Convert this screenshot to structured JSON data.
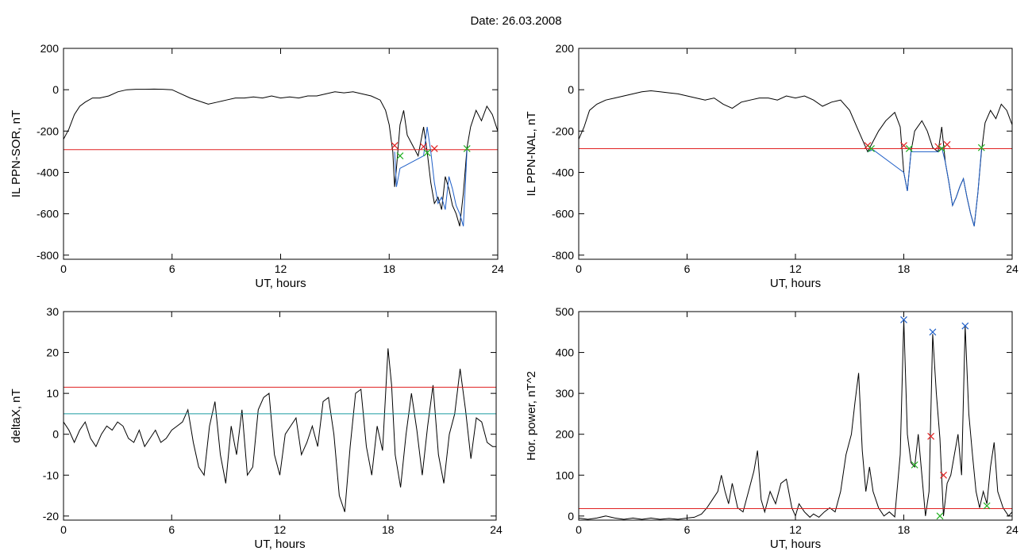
{
  "figure": {
    "title": "Date:  26.03.2008"
  },
  "chart_data": [
    {
      "type": "line",
      "panel": "top-left",
      "xlabel": "UT, hours",
      "ylabel": "IL PPN-SOR, nT",
      "xlim": [
        0,
        24
      ],
      "ylim": [
        -820,
        200
      ],
      "xticks": [
        0,
        6,
        12,
        18,
        24
      ],
      "yticks": [
        -800,
        -600,
        -400,
        -200,
        0,
        200
      ],
      "series": [
        {
          "kind": "line",
          "color": "#000000",
          "x": [
            0,
            0.3,
            0.6,
            0.9,
            1.2,
            1.6,
            2,
            2.5,
            3,
            3.5,
            4,
            4.5,
            5,
            5.5,
            6,
            6.5,
            7,
            7.5,
            8,
            8.5,
            9,
            9.5,
            10,
            10.5,
            11,
            11.5,
            12,
            12.5,
            13,
            13.5,
            14,
            14.5,
            15,
            15.5,
            16,
            16.5,
            17,
            17.5,
            17.8,
            18,
            18.2,
            18.3,
            18.4,
            18.6,
            18.8,
            19,
            19.3,
            19.6,
            19.9,
            20.1,
            20.3,
            20.5,
            20.7,
            20.9,
            21.1,
            21.3,
            21.5,
            21.7,
            21.9,
            22.1,
            22.3,
            22.5,
            22.8,
            23.1,
            23.4,
            23.7,
            24
          ],
          "y": [
            -240,
            -190,
            -120,
            -80,
            -60,
            -40,
            -40,
            -30,
            -10,
            0,
            2,
            2,
            3,
            2,
            0,
            -20,
            -40,
            -55,
            -70,
            -60,
            -50,
            -40,
            -40,
            -35,
            -40,
            -30,
            -40,
            -35,
            -40,
            -30,
            -30,
            -20,
            -10,
            -15,
            -10,
            -20,
            -30,
            -50,
            -100,
            -170,
            -300,
            -470,
            -380,
            -170,
            -100,
            -220,
            -270,
            -320,
            -180,
            -300,
            -450,
            -550,
            -520,
            -580,
            -420,
            -480,
            -560,
            -600,
            -660,
            -500,
            -280,
            -180,
            -100,
            -150,
            -80,
            -120,
            -200
          ]
        },
        {
          "kind": "line",
          "color": "#1f5fc8",
          "x": [
            18.3,
            18.4,
            18.6,
            19.9,
            20.1,
            20.3,
            20.5,
            20.7,
            20.9,
            21.1,
            21.3,
            21.5,
            21.7,
            21.9,
            22.1,
            22.3
          ],
          "y": [
            -300,
            -470,
            -380,
            -320,
            -180,
            -300,
            -450,
            -550,
            -520,
            -580,
            -420,
            -480,
            -560,
            -600,
            -660,
            -290
          ]
        },
        {
          "kind": "hline",
          "color": "#e02020",
          "y": -290
        },
        {
          "kind": "markers",
          "color": "#e02020",
          "x": [
            18.3,
            19.9,
            20.5
          ],
          "y": [
            -270,
            -275,
            -285
          ]
        },
        {
          "kind": "markers",
          "color": "#20b020",
          "x": [
            18.6,
            20.1,
            22.3
          ],
          "y": [
            -320,
            -305,
            -285
          ]
        }
      ]
    },
    {
      "type": "line",
      "panel": "top-right",
      "xlabel": "UT, hours",
      "ylabel": "IL PPN-NAL, nT",
      "xlim": [
        0,
        24
      ],
      "ylim": [
        -820,
        200
      ],
      "xticks": [
        0,
        6,
        12,
        18,
        24
      ],
      "yticks": [
        -800,
        -600,
        -400,
        -200,
        0,
        200
      ],
      "series": [
        {
          "kind": "line",
          "color": "#000000",
          "x": [
            0,
            0.3,
            0.6,
            1,
            1.5,
            2,
            2.5,
            3,
            3.5,
            4,
            4.5,
            5,
            5.5,
            6,
            6.5,
            7,
            7.5,
            8,
            8.5,
            9,
            9.5,
            10,
            10.5,
            11,
            11.5,
            12,
            12.5,
            13,
            13.5,
            14,
            14.5,
            15,
            15.5,
            16,
            16.3,
            16.6,
            17,
            17.5,
            17.8,
            18,
            18.2,
            18.4,
            18.6,
            19,
            19.3,
            19.6,
            19.9,
            20.1,
            20.3,
            20.5,
            20.7,
            20.9,
            21.1,
            21.3,
            21.5,
            21.7,
            21.9,
            22.1,
            22.3,
            22.5,
            22.8,
            23.1,
            23.4,
            23.7,
            24
          ],
          "y": [
            -240,
            -180,
            -100,
            -70,
            -50,
            -40,
            -30,
            -20,
            -10,
            -5,
            -10,
            -15,
            -20,
            -30,
            -40,
            -50,
            -40,
            -70,
            -90,
            -60,
            -50,
            -40,
            -40,
            -50,
            -30,
            -40,
            -30,
            -50,
            -80,
            -60,
            -50,
            -100,
            -200,
            -300,
            -250,
            -200,
            -150,
            -110,
            -180,
            -400,
            -490,
            -300,
            -200,
            -150,
            -200,
            -280,
            -300,
            -180,
            -350,
            -450,
            -560,
            -520,
            -470,
            -430,
            -520,
            -600,
            -660,
            -500,
            -300,
            -160,
            -100,
            -140,
            -70,
            -100,
            -170
          ]
        },
        {
          "kind": "line",
          "color": "#1f5fc8",
          "x": [
            16,
            16.3,
            18,
            18.2,
            18.4,
            19.9,
            20.1,
            20.3,
            20.5,
            20.7,
            20.9,
            21.1,
            21.3,
            21.5,
            21.7,
            21.9,
            22.1,
            22.3
          ],
          "y": [
            -300,
            -290,
            -400,
            -490,
            -300,
            -300,
            -280,
            -350,
            -450,
            -560,
            -520,
            -470,
            -430,
            -520,
            -600,
            -660,
            -500,
            -290
          ]
        },
        {
          "kind": "hline",
          "color": "#e02020",
          "y": -285
        },
        {
          "kind": "markers",
          "color": "#e02020",
          "x": [
            16,
            18,
            19.9,
            20.4
          ],
          "y": [
            -270,
            -270,
            -275,
            -265
          ]
        },
        {
          "kind": "markers",
          "color": "#20b020",
          "x": [
            16.2,
            18.3,
            20.1,
            22.3
          ],
          "y": [
            -285,
            -285,
            -285,
            -280
          ]
        }
      ]
    },
    {
      "type": "line",
      "panel": "bottom-left",
      "xlabel": "UT, hours",
      "ylabel": "deltaX, nT",
      "xlim": [
        0,
        24
      ],
      "ylim": [
        -21,
        30
      ],
      "xticks": [
        0,
        6,
        12,
        18,
        24
      ],
      "yticks": [
        -20,
        -10,
        0,
        10,
        20,
        30
      ],
      "series": [
        {
          "kind": "line",
          "color": "#000000",
          "x": [
            0,
            0.3,
            0.6,
            0.9,
            1.2,
            1.5,
            1.8,
            2.1,
            2.4,
            2.7,
            3,
            3.3,
            3.6,
            3.9,
            4.2,
            4.5,
            4.8,
            5.1,
            5.4,
            5.7,
            6,
            6.3,
            6.6,
            6.9,
            7.2,
            7.5,
            7.8,
            8.1,
            8.4,
            8.7,
            9,
            9.3,
            9.6,
            9.9,
            10.2,
            10.5,
            10.8,
            11.1,
            11.4,
            11.7,
            12,
            12.3,
            12.6,
            12.9,
            13.2,
            13.5,
            13.8,
            14.1,
            14.4,
            14.7,
            15,
            15.3,
            15.6,
            15.9,
            16.2,
            16.5,
            16.8,
            17.1,
            17.4,
            17.7,
            18,
            18.2,
            18.4,
            18.7,
            19,
            19.3,
            19.6,
            19.9,
            20.2,
            20.5,
            20.8,
            21.1,
            21.4,
            21.7,
            22,
            22.3,
            22.6,
            22.9,
            23.2,
            23.5,
            23.8,
            24
          ],
          "y": [
            3,
            1,
            -2,
            1,
            3,
            -1,
            -3,
            0,
            2,
            1,
            3,
            2,
            -1,
            -2,
            1,
            -3,
            -1,
            1,
            -2,
            -1,
            1,
            2,
            3,
            6,
            -2,
            -8,
            -10,
            2,
            8,
            -5,
            -12,
            2,
            -5,
            6,
            -10,
            -8,
            6,
            9,
            10,
            -5,
            -10,
            0,
            2,
            4,
            -5,
            -2,
            2,
            -3,
            8,
            9,
            0,
            -15,
            -19,
            -3,
            10,
            11,
            -3,
            -10,
            2,
            -4,
            21,
            12,
            -5,
            -13,
            0,
            10,
            1,
            -10,
            2,
            12,
            -5,
            -12,
            0,
            5,
            16,
            6,
            -6,
            4,
            3,
            -2,
            -3,
            -3
          ]
        },
        {
          "kind": "hline",
          "color": "#e02020",
          "y": 11.5
        },
        {
          "kind": "hline",
          "color": "#1a9aa0",
          "y": 5
        }
      ]
    },
    {
      "type": "line",
      "panel": "bottom-right",
      "xlabel": "UT, hours",
      "ylabel": "Hor. power, nT^2",
      "xlim": [
        0,
        24
      ],
      "ylim": [
        -10,
        500
      ],
      "xticks": [
        0,
        6,
        12,
        18,
        24
      ],
      "yticks": [
        0,
        100,
        200,
        300,
        400,
        500
      ],
      "series": [
        {
          "kind": "line",
          "color": "#000000",
          "x": [
            0,
            0.5,
            1,
            1.5,
            2,
            2.5,
            3,
            3.5,
            4,
            4.5,
            5,
            5.5,
            6,
            6.4,
            6.8,
            7.1,
            7.4,
            7.7,
            7.9,
            8.1,
            8.3,
            8.5,
            8.8,
            9.1,
            9.4,
            9.7,
            9.9,
            10.1,
            10.3,
            10.6,
            10.9,
            11.2,
            11.5,
            11.8,
            12,
            12.2,
            12.5,
            12.8,
            13,
            13.3,
            13.6,
            13.9,
            14.2,
            14.5,
            14.8,
            15.1,
            15.3,
            15.5,
            15.7,
            15.9,
            16.1,
            16.3,
            16.6,
            16.9,
            17.2,
            17.5,
            17.8,
            18,
            18.2,
            18.4,
            18.6,
            18.8,
            19,
            19.2,
            19.4,
            19.6,
            19.8,
            20,
            20.2,
            20.4,
            20.6,
            20.8,
            21,
            21.2,
            21.4,
            21.6,
            21.8,
            22,
            22.2,
            22.4,
            22.6,
            22.8,
            23,
            23.2,
            23.5,
            23.8,
            24
          ],
          "y": [
            -5,
            -8,
            -5,
            0,
            -5,
            -8,
            -5,
            -8,
            -5,
            -8,
            -6,
            -8,
            -5,
            -3,
            5,
            20,
            40,
            60,
            100,
            60,
            30,
            80,
            20,
            10,
            60,
            110,
            160,
            40,
            10,
            60,
            30,
            80,
            90,
            20,
            0,
            30,
            10,
            -3,
            5,
            -3,
            10,
            20,
            10,
            60,
            150,
            200,
            280,
            350,
            160,
            60,
            120,
            60,
            20,
            0,
            10,
            -2,
            150,
            480,
            200,
            130,
            120,
            200,
            100,
            0,
            60,
            445,
            300,
            190,
            0,
            80,
            100,
            150,
            200,
            100,
            465,
            250,
            150,
            60,
            20,
            60,
            30,
            120,
            180,
            60,
            20,
            0,
            10
          ]
        },
        {
          "kind": "hline",
          "color": "#e02020",
          "y": 18
        },
        {
          "kind": "markers",
          "color": "#1f5fc8",
          "x": [
            18,
            19.6,
            21.4
          ],
          "y": [
            480,
            450,
            465
          ]
        },
        {
          "kind": "markers",
          "color": "#e02020",
          "x": [
            19.5,
            20.2
          ],
          "y": [
            195,
            100
          ]
        },
        {
          "kind": "markers",
          "color": "#20b020",
          "x": [
            18.6,
            20,
            22.6
          ],
          "y": [
            125,
            0,
            25
          ]
        }
      ]
    }
  ]
}
